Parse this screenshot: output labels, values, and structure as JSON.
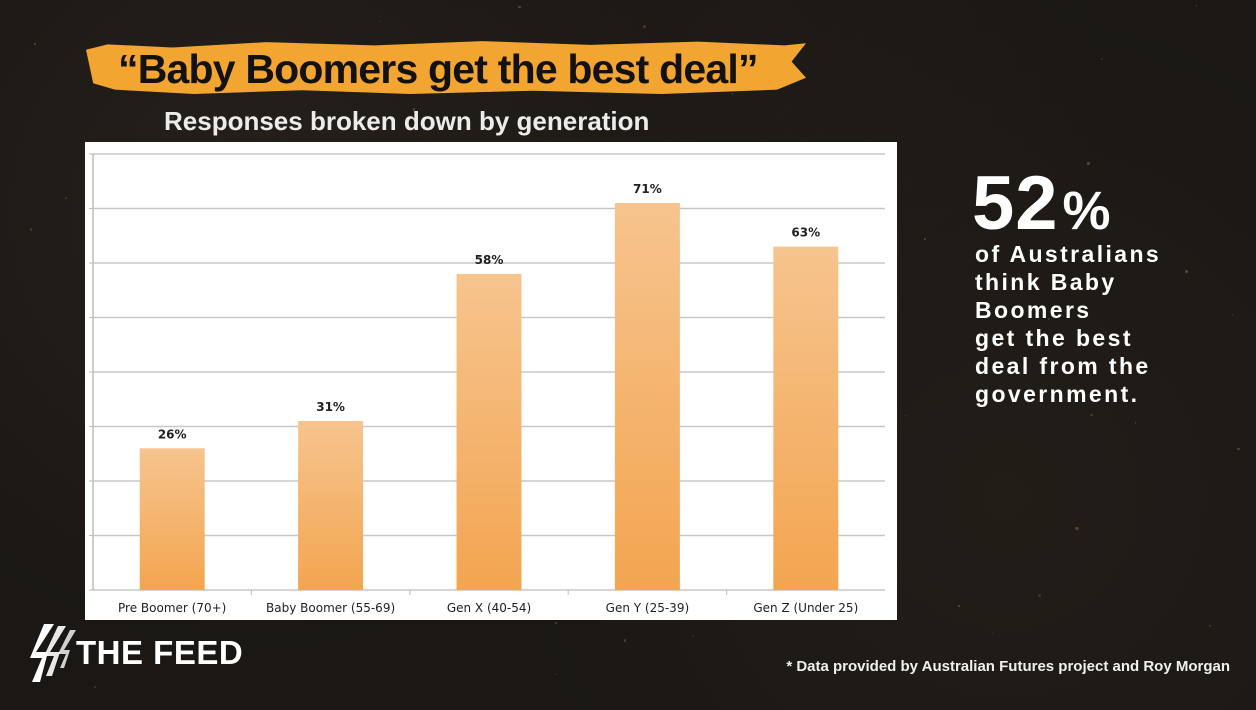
{
  "headline": "“Baby Boomers get the best deal”",
  "subtitle": "Responses broken down by generation",
  "stat": {
    "value": "52",
    "unit": "%",
    "caption_lines": [
      "of Australians",
      "think Baby",
      "Boomers",
      "get the best",
      "deal from the",
      "government."
    ]
  },
  "logo": {
    "text": "THE FEED",
    "icon": "sbs-logo-icon"
  },
  "footnote": "* Data provided by Australian Futures project and Roy Morgan",
  "colors": {
    "background": "#1a1714",
    "headline_band": "#f2a530",
    "bar_top": "#f6c48e",
    "bar_bottom": "#f3a550",
    "text_light": "#ffffff"
  },
  "chart_data": {
    "type": "bar",
    "categories": [
      "Pre Boomer (70+)",
      "Baby Boomer (55-69)",
      "Gen X (40-54)",
      "Gen Y (25-39)",
      "Gen Z (Under 25)"
    ],
    "values": [
      26,
      31,
      58,
      71,
      63
    ],
    "data_labels": [
      "26%",
      "31%",
      "58%",
      "71%",
      "63%"
    ],
    "ylim": [
      0,
      80
    ],
    "ytick_step": 10,
    "grid": true,
    "show_y_tick_labels": false
  }
}
